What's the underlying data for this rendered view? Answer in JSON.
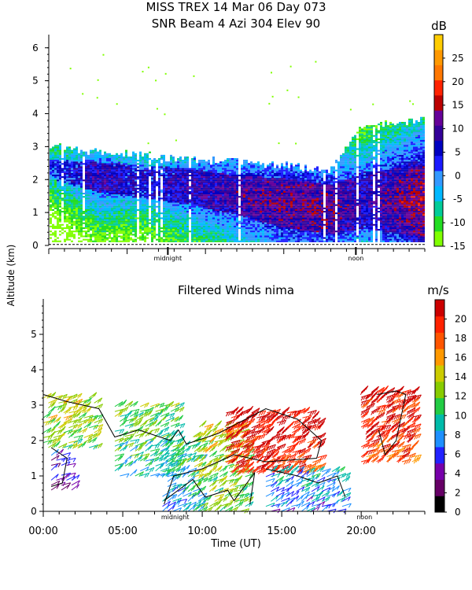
{
  "header": {
    "title_line1": "MISS TREX  14 Mar 06 Day 073",
    "title_line2": "SNR Beam 4 Azi 304 Elev 90"
  },
  "colors": {
    "snr_scale": [
      "#80ff00",
      "#22dd22",
      "#00cc99",
      "#00b8ff",
      "#3399ff",
      "#1a1aff",
      "#0000c0",
      "#330099",
      "#660099",
      "#bb0000",
      "#ff2200",
      "#ff7700",
      "#ff9900",
      "#ffcc00"
    ],
    "wind_scale": [
      "#000000",
      "#660066",
      "#7700aa",
      "#2222ff",
      "#1e90ff",
      "#00bbaa",
      "#22cc44",
      "#88cc00",
      "#cccc00",
      "#ff9900",
      "#ff5500",
      "#ff2200",
      "#cc0000"
    ]
  },
  "chart_data": [
    {
      "type": "heatmap",
      "title": "SNR Beam 4 Azi 304 Elev 90",
      "ylabel": "Altitude (km)",
      "y_ticks": [
        0,
        1,
        2,
        3,
        4,
        5,
        6
      ],
      "ylim": [
        0,
        6.4
      ],
      "xlim": [
        0,
        24
      ],
      "x_markers": [
        {
          "x": 7.6,
          "label": "midnight"
        },
        {
          "x": 19.6,
          "label": "noon"
        }
      ],
      "colorbar": {
        "title": "dB",
        "ticks": [
          -15,
          -10,
          -5,
          0,
          5,
          10,
          15,
          20,
          25
        ],
        "range": [
          -15,
          30
        ]
      },
      "echo_layer": [
        {
          "t": 0,
          "bottom": 0.1,
          "top": 3.05,
          "core_low": 2.0,
          "core_high": 2.6,
          "snr_core": 2
        },
        {
          "t": 3,
          "bottom": 0.1,
          "top": 2.8,
          "core_low": 1.6,
          "core_high": 2.5,
          "snr_core": 8
        },
        {
          "t": 6,
          "bottom": 0.1,
          "top": 2.7,
          "core_low": 1.4,
          "core_high": 2.4,
          "snr_core": 5
        },
        {
          "t": 9,
          "bottom": 0.1,
          "top": 2.6,
          "core_low": 1.2,
          "core_high": 2.3,
          "snr_core": 8
        },
        {
          "t": 12,
          "bottom": 0.1,
          "top": 2.5,
          "core_low": 0.9,
          "core_high": 2.1,
          "snr_core": 10
        },
        {
          "t": 15,
          "bottom": 0.1,
          "top": 2.4,
          "core_low": 0.5,
          "core_high": 2.0,
          "snr_core": 12
        },
        {
          "t": 18,
          "bottom": 0.1,
          "top": 2.3,
          "core_low": 0.3,
          "core_high": 1.8,
          "snr_core": 12
        },
        {
          "t": 20,
          "bottom": 0.1,
          "top": 3.6,
          "core_low": 0.5,
          "core_high": 2.2,
          "snr_core": 8
        },
        {
          "t": 24,
          "bottom": 0.1,
          "top": 3.8,
          "core_low": 0.2,
          "core_high": 2.4,
          "snr_core": 15
        }
      ]
    },
    {
      "type": "barbs",
      "title": "Filtered Winds nima",
      "xlabel": "Time (UT)",
      "ylabel": "Altitude (km)",
      "x_ticks": [
        "00:00",
        "05:00",
        "10:00",
        "15:00",
        "20:00"
      ],
      "x_tick_values": [
        0,
        5,
        10,
        15,
        20
      ],
      "y_ticks": [
        0,
        1,
        2,
        3,
        4,
        5
      ],
      "ylim": [
        0,
        6
      ],
      "xlim": [
        0,
        24
      ],
      "x_markers": [
        {
          "x": 8.3,
          "label": "midnight"
        },
        {
          "x": 20.2,
          "label": "noon"
        }
      ],
      "colorbar": {
        "title": "m/s",
        "ticks": [
          0,
          2,
          4,
          6,
          8,
          10,
          12,
          14,
          16,
          18,
          20
        ],
        "range": [
          0,
          22
        ]
      },
      "wind_regions": [
        {
          "t_start": 0,
          "t_end": 3.5,
          "z_low": 1.8,
          "z_high": 3.3,
          "speed": 12
        },
        {
          "t_start": 0.5,
          "t_end": 2.0,
          "z_low": 0.6,
          "z_high": 1.7,
          "speed": 4
        },
        {
          "t_start": 4.5,
          "t_end": 8.5,
          "z_low": 1.0,
          "z_high": 3.0,
          "speed": 9
        },
        {
          "t_start": 7.5,
          "t_end": 10.0,
          "z_low": 0.0,
          "z_high": 2.2,
          "speed": 8
        },
        {
          "t_start": 9.5,
          "t_end": 13.0,
          "z_low": 0.0,
          "z_high": 2.4,
          "speed": 11
        },
        {
          "t_start": 11.5,
          "t_end": 17.5,
          "z_low": 1.1,
          "z_high": 2.8,
          "speed": 19
        },
        {
          "t_start": 14.0,
          "t_end": 19.0,
          "z_low": 0.0,
          "z_high": 1.2,
          "speed": 7
        },
        {
          "t_start": 20.0,
          "t_end": 23.5,
          "z_low": 1.4,
          "z_high": 3.4,
          "speed": 18
        }
      ]
    }
  ]
}
